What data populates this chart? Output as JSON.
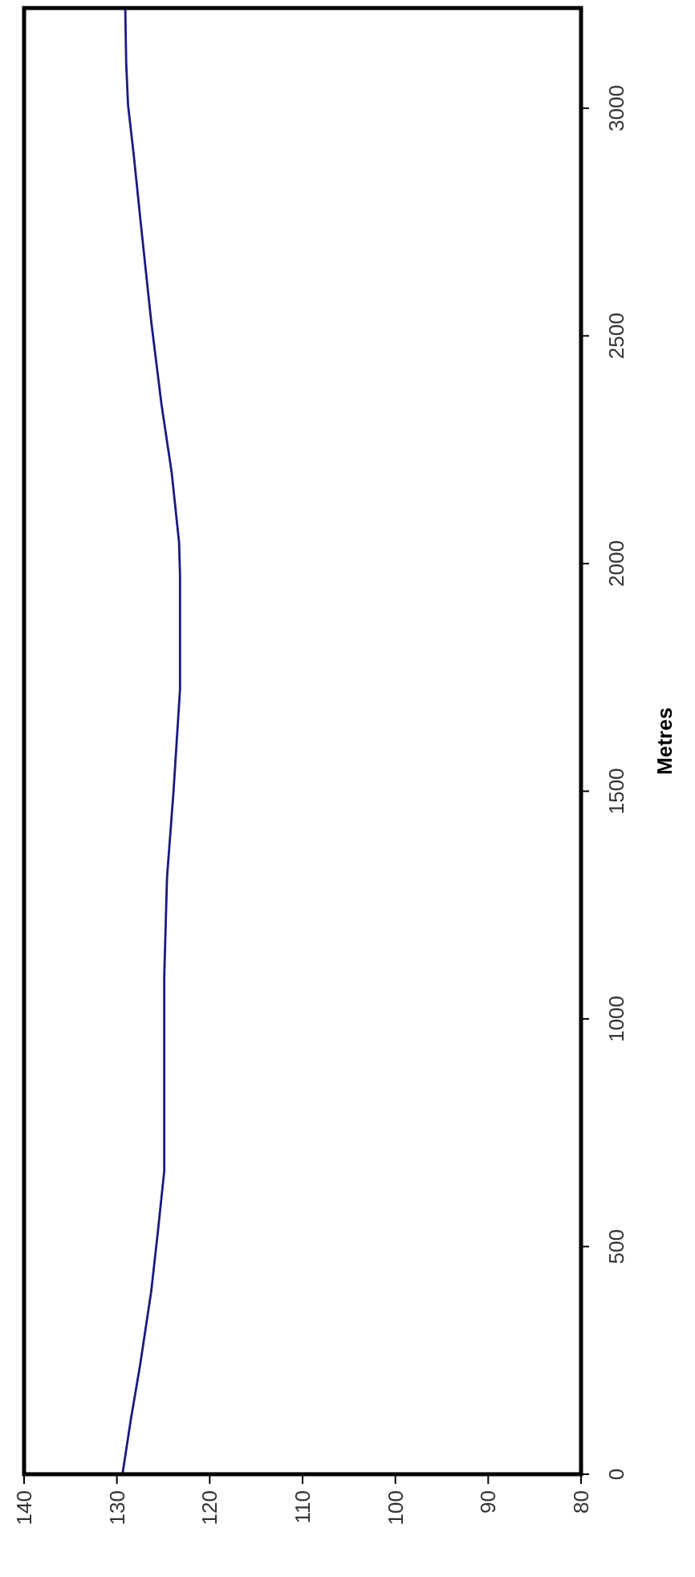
{
  "chart_data": {
    "type": "line",
    "ylabel": "Metres",
    "x": [
      129.4,
      128.5,
      127.5,
      126.3,
      125.6,
      124.9,
      124.9,
      124.9,
      124.6,
      123.9,
      123.2,
      123.2,
      123.2,
      123.3,
      124.1,
      125.2,
      126.3,
      127.4,
      128.2,
      128.8,
      129.0,
      129.1
    ],
    "values": [
      0,
      120,
      240,
      402,
      530,
      666,
      880,
      1093,
      1311,
      1500,
      1724,
      1850,
      1974,
      2046,
      2200,
      2350,
      2531,
      2742,
      2900,
      3007,
      3100,
      3220
    ],
    "color": "#1a1a80",
    "xlim": [
      140,
      80
    ],
    "xticks": [
      140,
      130,
      120,
      110,
      100,
      90,
      80
    ],
    "ylim": [
      0,
      3220
    ],
    "yticks": [
      0,
      500,
      1000,
      1500,
      2000,
      2500,
      3000
    ],
    "grid": false,
    "marker": "none",
    "line_style": "solid"
  }
}
